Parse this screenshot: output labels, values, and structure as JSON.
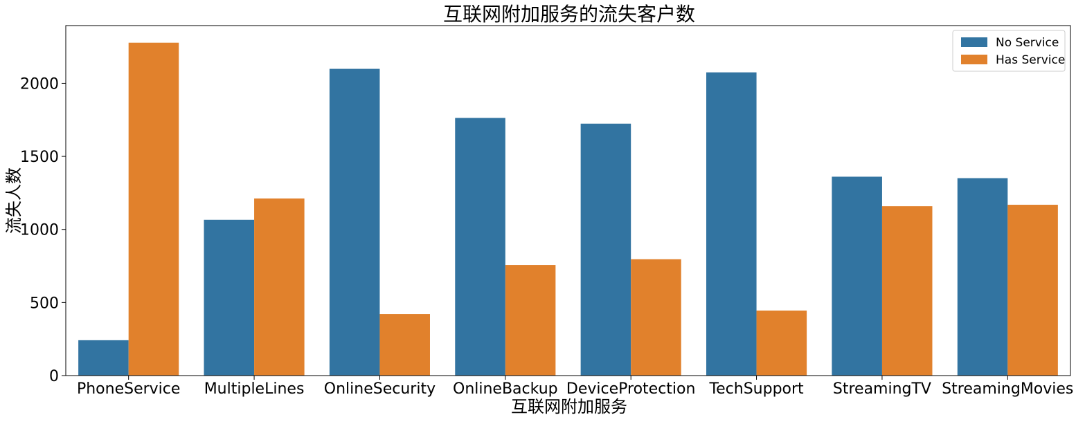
{
  "chart_data": {
    "type": "bar",
    "title": "互联网附加服务的流失客户数",
    "xlabel": "互联网附加服务",
    "ylabel": "流失人数",
    "categories": [
      "PhoneService",
      "MultipleLines",
      "OnlineSecurity",
      "OnlineBackup",
      "DeviceProtection",
      "TechSupport",
      "StreamingTV",
      "StreamingMovies"
    ],
    "series": [
      {
        "name": "No Service",
        "color": "#3274a1",
        "values": [
          242,
          1066,
          2099,
          1763,
          1724,
          2075,
          1361,
          1351
        ]
      },
      {
        "name": "Has Service",
        "color": "#e1812c",
        "values": [
          2278,
          1212,
          421,
          757,
          796,
          445,
          1159,
          1169
        ]
      }
    ],
    "ylim": [
      0,
      2395
    ],
    "yticks": [
      0,
      500,
      1000,
      1500,
      2000
    ],
    "grid": false,
    "legend_position": "top-right"
  }
}
